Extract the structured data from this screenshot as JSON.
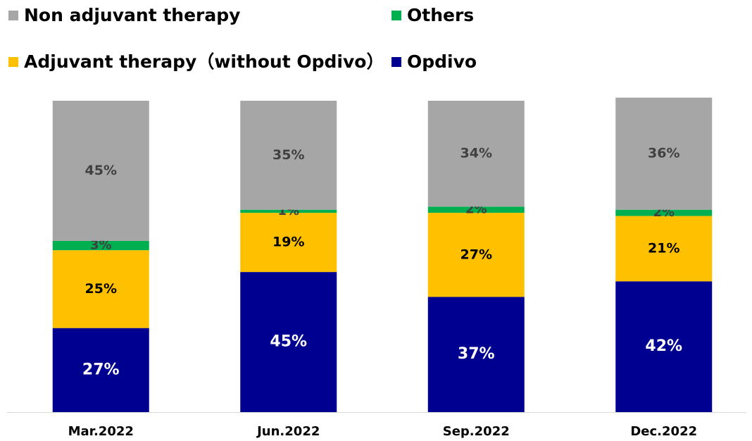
{
  "chart_data": {
    "type": "stacked_bar",
    "categories": [
      "Mar.2022",
      "Jun.2022",
      "Sep.2022",
      "Dec.2022"
    ],
    "series": [
      {
        "name": "Opdivo",
        "color": "#000090",
        "values": [
          27,
          45,
          37,
          42
        ],
        "value_labels": [
          "27%",
          "45%",
          "37%",
          "42%"
        ]
      },
      {
        "name": "Adjuvant therapy（without Opdivo）",
        "color": "#ffc000",
        "values": [
          25,
          19,
          27,
          21
        ],
        "value_labels": [
          "25%",
          "19%",
          "27%",
          "21%"
        ]
      },
      {
        "name": "Others",
        "color": "#00b050",
        "values": [
          3,
          1,
          2,
          2
        ],
        "value_labels": [
          "3%",
          "1%",
          "2%",
          "2%"
        ]
      },
      {
        "name": "Non adjuvant therapy",
        "color": "#a6a6a6",
        "values": [
          45,
          35,
          34,
          36
        ],
        "value_labels": [
          "45%",
          "35%",
          "34%",
          "36%"
        ]
      }
    ],
    "ylim": [
      0,
      100
    ]
  }
}
